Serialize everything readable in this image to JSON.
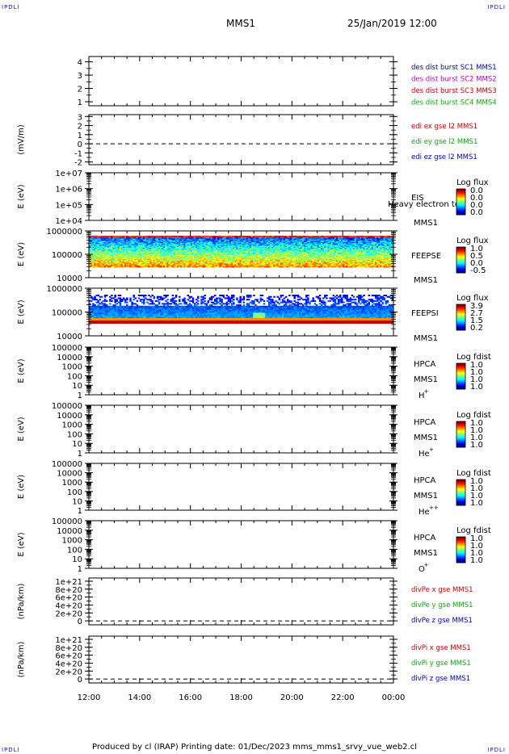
{
  "corner_label": "IPDLI",
  "header": {
    "title": "MMS1",
    "date": "25/Jan/2019 12:00"
  },
  "footer": "Produced by cl (IRAP)   Printing date: 01/Dec/2023   mms_mms1_srvy_vue_web2.cl",
  "chart_data": {
    "type": "line",
    "x_range": [
      "25/Jan/2019 12:00",
      "26/Jan/2019 00:00"
    ],
    "x_ticks": [
      "12:00",
      "14:00",
      "16:00",
      "18:00",
      "20:00",
      "22:00",
      "00:00"
    ],
    "panels": [
      {
        "id": "des-dist",
        "type": "line",
        "ylabel": "",
        "y_ticks": [
          "1",
          "2",
          "3",
          "4"
        ],
        "ylim": [
          0.7,
          4.4
        ],
        "legend": [
          {
            "text": "des dist burst SC1 MMS1",
            "color": "#0000c0"
          },
          {
            "text": "des dist burst SC2 MMS2",
            "color": "#c000c0"
          },
          {
            "text": "des dist burst SC3 MMS3",
            "color": "#d00000"
          },
          {
            "text": "des dist burst SC4 MMS4",
            "color": "#00b000"
          }
        ]
      },
      {
        "id": "edi",
        "type": "line",
        "ylabel": "(mV/m)",
        "y_ticks": [
          "-2",
          "-1",
          "0",
          "1",
          "2",
          "3"
        ],
        "ylim": [
          -2.3,
          3.2
        ],
        "zero_line": true,
        "legend": [
          {
            "text": "edi ex gse l2 MMS1",
            "color": "#d00000"
          },
          {
            "text": "edi ey gse l2 MMS1",
            "color": "#00b000"
          },
          {
            "text": "edi ez gse l2 MMS1",
            "color": "#0000c0"
          }
        ]
      },
      {
        "id": "eis",
        "type": "heatmap",
        "ylabel": "E (eV)",
        "y_ticks": [
          "1e+04",
          "1e+05",
          "1e+06",
          "1e+07"
        ],
        "scale": "log",
        "ylim": [
          10000,
          10000000
        ],
        "instrument": "EIS",
        "spacecraft": "MMS1",
        "overlay_text": "Heavy electron to",
        "colorbar": {
          "title": "Log flux",
          "ticks": [
            "0.0",
            "0.0",
            "0.0",
            "0.0"
          ]
        },
        "fill": "none"
      },
      {
        "id": "feepse",
        "type": "heatmap",
        "ylabel": "E (eV)",
        "y_ticks": [
          "10000",
          "100000",
          "1000000"
        ],
        "scale": "log",
        "ylim": [
          10000,
          1000000
        ],
        "instrument": "FEEPSE",
        "spacecraft": "MMS1",
        "colorbar": {
          "title": "Log flux",
          "ticks": [
            "1.0",
            "0.5",
            "0.0",
            "-0.5"
          ]
        },
        "fill": "electron"
      },
      {
        "id": "feepsi",
        "type": "heatmap",
        "ylabel": "E (eV)",
        "y_ticks": [
          "10000",
          "100000",
          "1000000"
        ],
        "scale": "log",
        "ylim": [
          10000,
          1000000
        ],
        "instrument": "FEEPSI",
        "spacecraft": "MMS1",
        "colorbar": {
          "title": "Log flux",
          "ticks": [
            "3.9",
            "2.7",
            "1.5",
            "0.2"
          ]
        },
        "fill": "ion"
      },
      {
        "id": "hpca-h",
        "type": "heatmap",
        "ylabel": "E (eV)",
        "y_ticks": [
          "1",
          "10",
          "100",
          "1000",
          "10000",
          "100000"
        ],
        "scale": "log",
        "ylim": [
          1,
          100000
        ],
        "instrument": "HPCA",
        "spacecraft": "MMS1",
        "species": "H",
        "species_sup": "+",
        "colorbar": {
          "title": "Log fdist",
          "ticks": [
            "1.0",
            "1.0",
            "1.0",
            "1.0"
          ]
        },
        "fill": "none"
      },
      {
        "id": "hpca-he",
        "type": "heatmap",
        "ylabel": "E (eV)",
        "y_ticks": [
          "1",
          "10",
          "100",
          "1000",
          "10000",
          "100000"
        ],
        "scale": "log",
        "ylim": [
          1,
          100000
        ],
        "instrument": "HPCA",
        "spacecraft": "MMS1",
        "species": "He",
        "species_sup": "+",
        "colorbar": {
          "title": "Log fdist",
          "ticks": [
            "1.0",
            "1.0",
            "1.0",
            "1.0"
          ]
        },
        "fill": "none"
      },
      {
        "id": "hpca-hepp",
        "type": "heatmap",
        "ylabel": "E (eV)",
        "y_ticks": [
          "1",
          "10",
          "100",
          "1000",
          "10000",
          "100000"
        ],
        "scale": "log",
        "ylim": [
          1,
          100000
        ],
        "instrument": "HPCA",
        "spacecraft": "MMS1",
        "species": "He",
        "species_sup": "++",
        "colorbar": {
          "title": "Log fdist",
          "ticks": [
            "1.0",
            "1.0",
            "1.0",
            "1.0"
          ]
        },
        "fill": "none"
      },
      {
        "id": "hpca-o",
        "type": "heatmap",
        "ylabel": "E (eV)",
        "y_ticks": [
          "1",
          "10",
          "100",
          "1000",
          "10000",
          "100000"
        ],
        "scale": "log",
        "ylim": [
          1,
          100000
        ],
        "instrument": "HPCA",
        "spacecraft": "MMS1",
        "species": "O",
        "species_sup": "+",
        "colorbar": {
          "title": "Log fdist",
          "ticks": [
            "1.0",
            "1.0",
            "1.0",
            "1.0"
          ]
        },
        "fill": "none"
      },
      {
        "id": "divpe",
        "type": "line",
        "ylabel": "(nPa/km)",
        "y_ticks": [
          "0",
          "2e+20",
          "4e+20",
          "6e+20",
          "8e+20",
          "1e+21"
        ],
        "ylim": [
          -1e+20,
          1.08e+21
        ],
        "zero_line": true,
        "legend": [
          {
            "text": "divPe x gse MMS1",
            "color": "#d00000"
          },
          {
            "text": "divPe y gse MMS1",
            "color": "#00b000"
          },
          {
            "text": "divPe z gse MMS1",
            "color": "#0000c0"
          }
        ]
      },
      {
        "id": "divpi",
        "type": "line",
        "ylabel": "(nPa/km)",
        "y_ticks": [
          "0",
          "2e+20",
          "4e+20",
          "6e+20",
          "8e+20",
          "1e+21"
        ],
        "ylim": [
          -1e+20,
          1.08e+21
        ],
        "zero_line": true,
        "legend": [
          {
            "text": "divPi x gse MMS1",
            "color": "#d00000"
          },
          {
            "text": "divPi y gse MMS1",
            "color": "#00b000"
          },
          {
            "text": "divPi z gse MMS1",
            "color": "#0000c0"
          }
        ]
      }
    ]
  }
}
